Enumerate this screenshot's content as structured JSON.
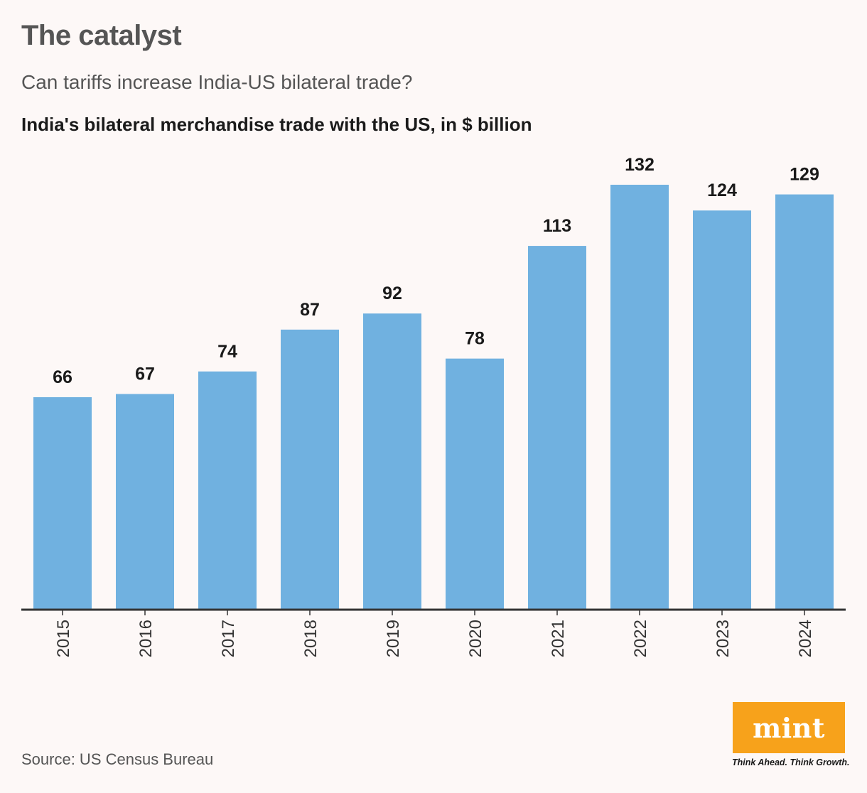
{
  "header": {
    "title": "The catalyst",
    "subtitle": "Can tariffs increase India-US bilateral trade?"
  },
  "chart_data": {
    "type": "bar",
    "title": "India's bilateral merchandise trade with the US, in $ billion",
    "categories": [
      "2015",
      "2016",
      "2017",
      "2018",
      "2019",
      "2020",
      "2021",
      "2022",
      "2023",
      "2024"
    ],
    "values": [
      66,
      67,
      74,
      87,
      92,
      78,
      113,
      132,
      124,
      129
    ],
    "xlabel": "",
    "ylabel": "",
    "ylim": [
      0,
      132
    ],
    "grid": false,
    "bar_color": "#70b1e0",
    "axis_color": "#333333"
  },
  "footer": {
    "source": "Source: US Census Bureau",
    "logo_text": "mint",
    "tagline": "Think Ahead. Think Growth.",
    "logo_color": "#f7a21b"
  }
}
